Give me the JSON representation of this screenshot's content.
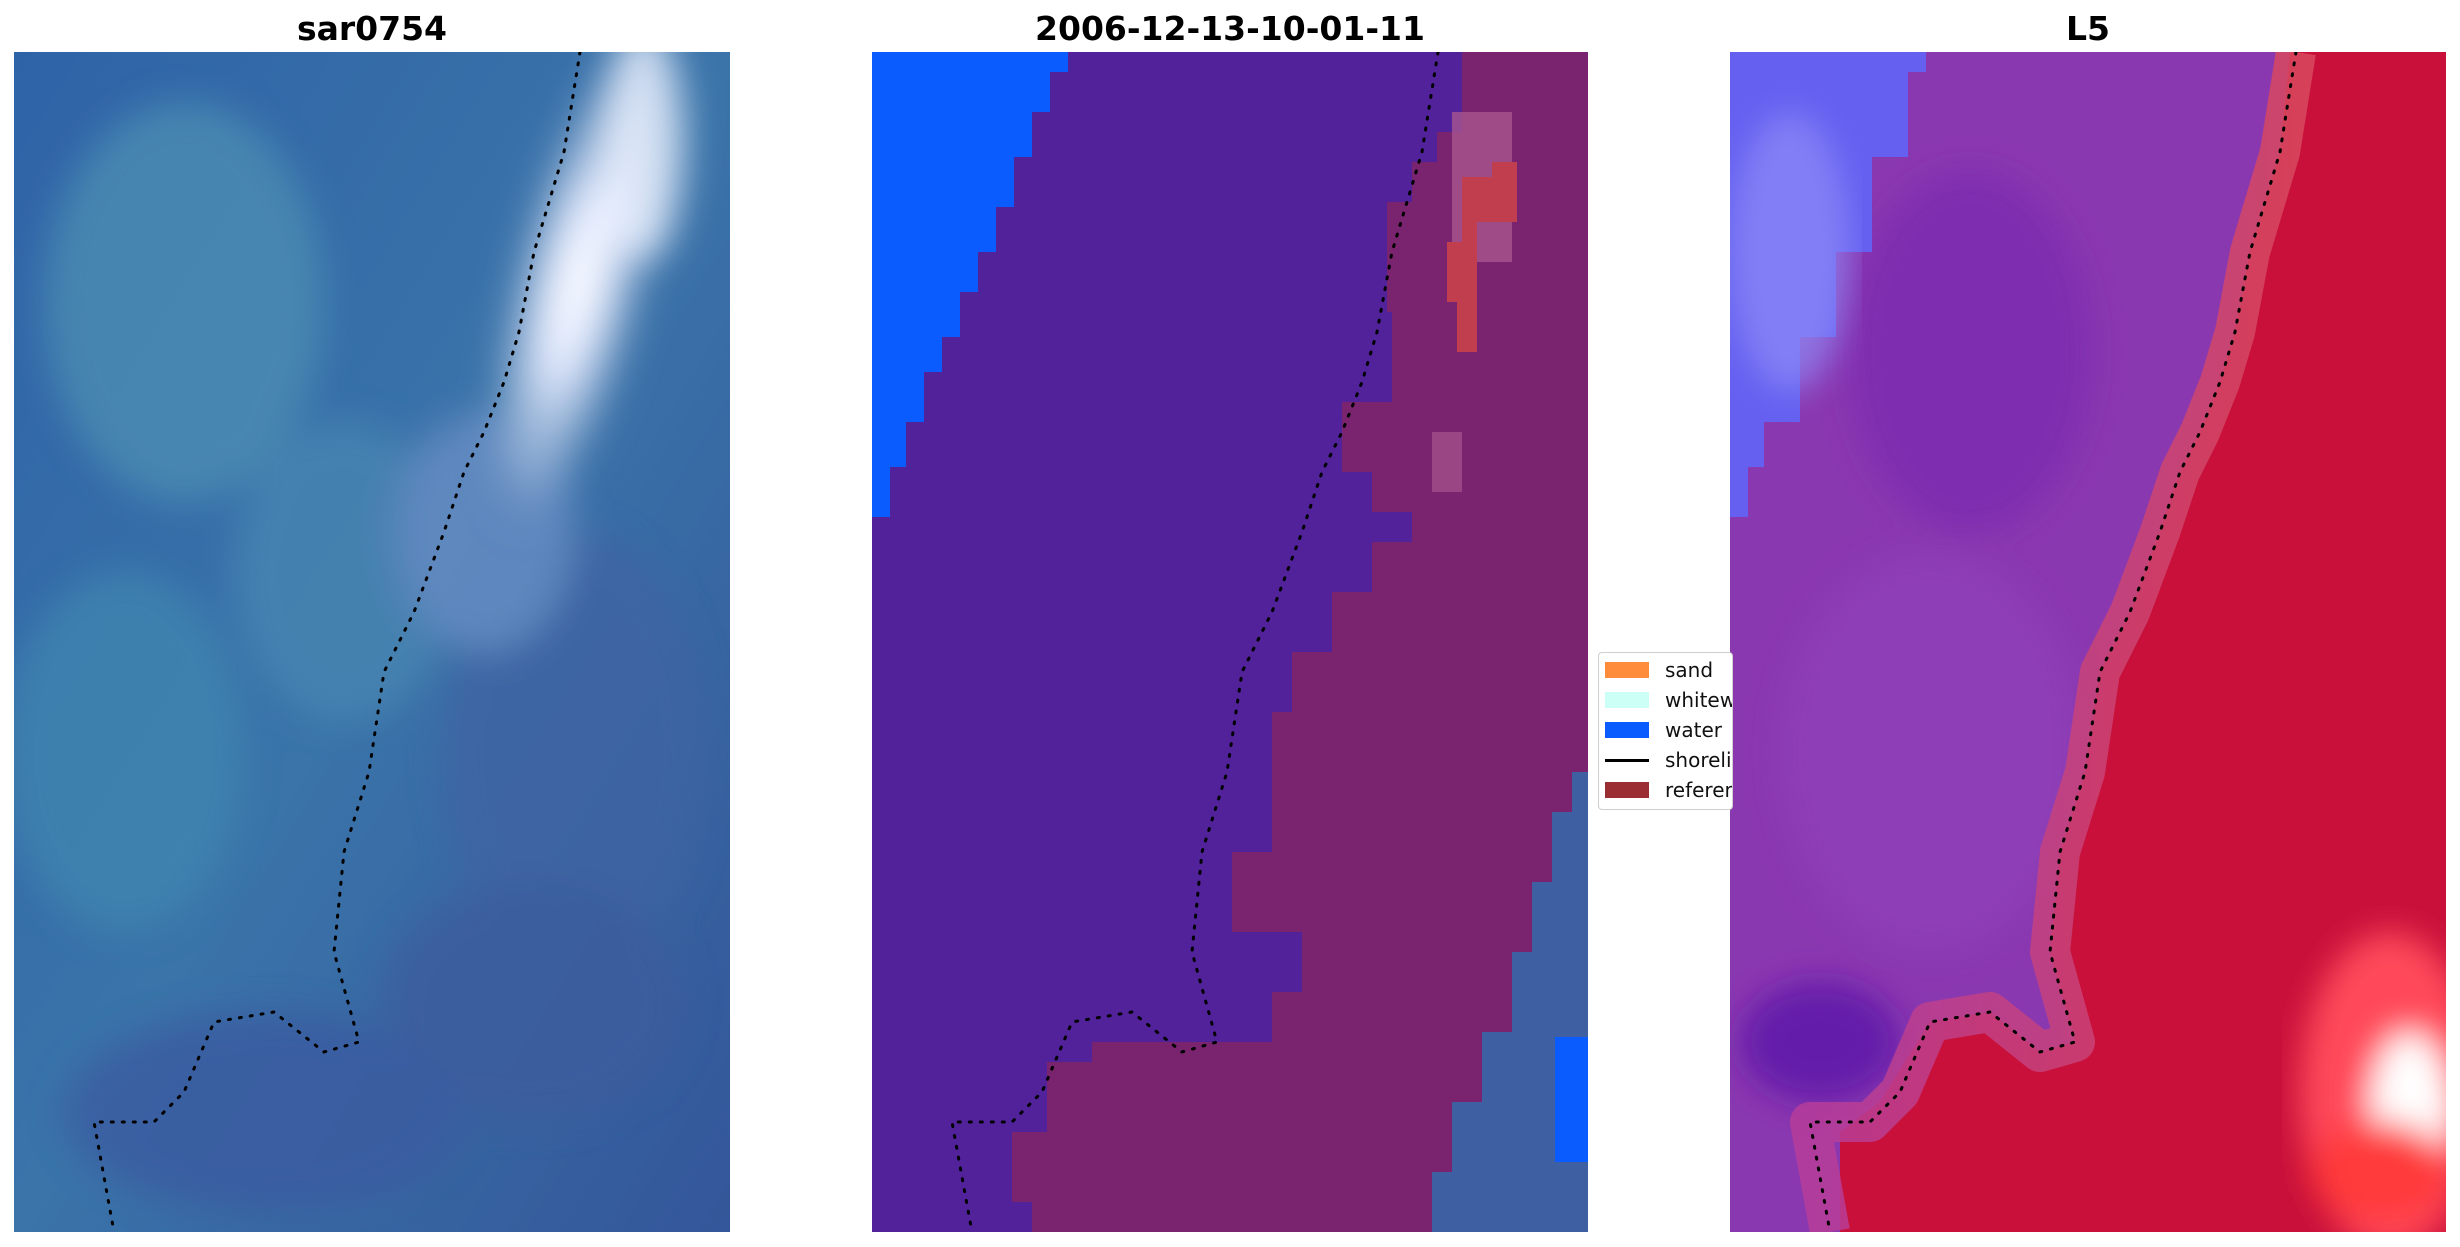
{
  "panels": [
    {
      "title": "sar0754"
    },
    {
      "title": "2006-12-13-10-01-11"
    },
    {
      "title": "L5"
    }
  ],
  "legend": {
    "items": [
      {
        "label": "sand",
        "color": "#ff8c3b",
        "kind": "patch"
      },
      {
        "label": "whitewater",
        "color": "#ccfff6",
        "kind": "patch"
      },
      {
        "label": "water",
        "color": "#0a5cff",
        "kind": "patch"
      },
      {
        "label": "shoreline",
        "color": "#000000",
        "kind": "line"
      },
      {
        "label": "reference",
        "color": "#9a2e32",
        "kind": "patch"
      }
    ]
  },
  "colors": {
    "sar_base": "#3566a5",
    "sar_foam": "#f4f6ff",
    "class_land": "#52229a",
    "class_water": "#0a5cff",
    "class_reference": "#7a2470",
    "l5_water": "#6560f0",
    "l5_land": "#8a38b0",
    "l5_sand": "#c8103a"
  }
}
